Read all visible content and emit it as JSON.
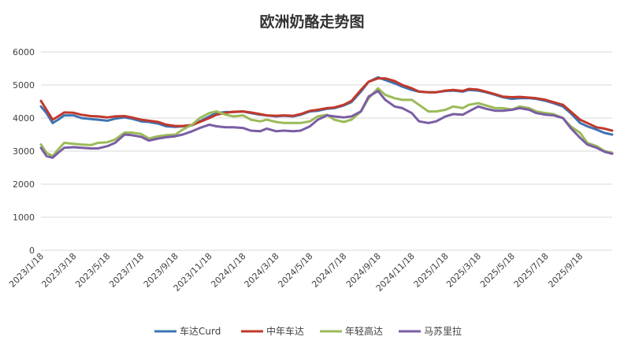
{
  "chart_data": {
    "type": "line",
    "title": "欧洲奶酪走势图",
    "xlabel": "",
    "ylabel": "",
    "ylim": [
      0,
      6000
    ],
    "yticks": [
      0,
      1000,
      2000,
      3000,
      4000,
      5000,
      6000
    ],
    "x_tick_labels": [
      "2023/1/18",
      "2023/3/18",
      "2023/5/18",
      "2023/7/18",
      "2023/9/18",
      "2023/11/18",
      "2024/1/18",
      "2024/3/18",
      "2024/5/18",
      "2024/7/18",
      "2024/9/18",
      "2024/11/18",
      "2025/1/18",
      "2025/3/18",
      "2025/5/18",
      "2025/7/18",
      "2025/9/18"
    ],
    "x_range": [
      "2023/1/18",
      "2025/11/15"
    ],
    "grid": "horizontal",
    "legend_position": "bottom",
    "series": [
      {
        "name": "车达Curd",
        "color": "#3d74b4",
        "points": [
          [
            "2023/1/18",
            4350
          ],
          [
            "2023/1/28",
            4150
          ],
          [
            "2023/2/8",
            3850
          ],
          [
            "2023/2/18",
            3950
          ],
          [
            "2023/3/1",
            4080
          ],
          [
            "2023/3/18",
            4080
          ],
          [
            "2023/4/1",
            4000
          ],
          [
            "2023/4/18",
            3970
          ],
          [
            "2023/5/1",
            3950
          ],
          [
            "2023/5/18",
            3920
          ],
          [
            "2023/6/1",
            3980
          ],
          [
            "2023/6/18",
            4020
          ],
          [
            "2023/7/1",
            3980
          ],
          [
            "2023/7/18",
            3900
          ],
          [
            "2023/8/1",
            3880
          ],
          [
            "2023/8/18",
            3830
          ],
          [
            "2023/9/1",
            3750
          ],
          [
            "2023/9/18",
            3730
          ],
          [
            "2023/10/1",
            3750
          ],
          [
            "2023/10/18",
            3780
          ],
          [
            "2023/11/1",
            3900
          ],
          [
            "2023/11/18",
            4050
          ],
          [
            "2023/12/1",
            4150
          ],
          [
            "2023/12/18",
            4180
          ],
          [
            "2024/1/1",
            4180
          ],
          [
            "2024/1/18",
            4200
          ],
          [
            "2024/2/1",
            4150
          ],
          [
            "2024/2/18",
            4100
          ],
          [
            "2024/3/1",
            4080
          ],
          [
            "2024/3/18",
            4050
          ],
          [
            "2024/4/1",
            4070
          ],
          [
            "2024/4/18",
            4050
          ],
          [
            "2024/5/1",
            4100
          ],
          [
            "2024/5/18",
            4200
          ],
          [
            "2024/6/1",
            4220
          ],
          [
            "2024/6/18",
            4280
          ],
          [
            "2024/7/1",
            4300
          ],
          [
            "2024/7/18",
            4380
          ],
          [
            "2024/8/1",
            4480
          ],
          [
            "2024/8/18",
            4800
          ],
          [
            "2024/9/1",
            5100
          ],
          [
            "2024/9/18",
            5230
          ],
          [
            "2024/10/1",
            5150
          ],
          [
            "2024/10/18",
            5050
          ],
          [
            "2024/11/1",
            4950
          ],
          [
            "2024/11/18",
            4850
          ],
          [
            "2024/12/1",
            4800
          ],
          [
            "2024/12/18",
            4780
          ],
          [
            "2025/1/1",
            4780
          ],
          [
            "2025/1/18",
            4820
          ],
          [
            "2025/2/1",
            4830
          ],
          [
            "2025/2/18",
            4800
          ],
          [
            "2025/3/1",
            4850
          ],
          [
            "2025/3/18",
            4830
          ],
          [
            "2025/4/1",
            4780
          ],
          [
            "2025/4/18",
            4700
          ],
          [
            "2025/5/1",
            4630
          ],
          [
            "2025/5/18",
            4580
          ],
          [
            "2025/6/1",
            4600
          ],
          [
            "2025/6/18",
            4600
          ],
          [
            "2025/7/1",
            4580
          ],
          [
            "2025/7/18",
            4520
          ],
          [
            "2025/8/1",
            4450
          ],
          [
            "2025/8/18",
            4350
          ],
          [
            "2025/9/1",
            4150
          ],
          [
            "2025/9/18",
            3850
          ],
          [
            "2025/10/1",
            3750
          ],
          [
            "2025/10/18",
            3650
          ],
          [
            "2025/11/1",
            3550
          ],
          [
            "2025/11/15",
            3500
          ]
        ]
      },
      {
        "name": "中年车达",
        "color": "#c0392b",
        "points": [
          [
            "2023/1/18",
            4520
          ],
          [
            "2023/1/28",
            4250
          ],
          [
            "2023/2/8",
            3950
          ],
          [
            "2023/2/18",
            4050
          ],
          [
            "2023/3/1",
            4170
          ],
          [
            "2023/3/18",
            4160
          ],
          [
            "2023/4/1",
            4100
          ],
          [
            "2023/4/18",
            4060
          ],
          [
            "2023/5/1",
            4050
          ],
          [
            "2023/5/18",
            4020
          ],
          [
            "2023/6/1",
            4050
          ],
          [
            "2023/6/18",
            4060
          ],
          [
            "2023/7/1",
            4020
          ],
          [
            "2023/7/18",
            3950
          ],
          [
            "2023/8/1",
            3920
          ],
          [
            "2023/8/18",
            3880
          ],
          [
            "2023/9/1",
            3800
          ],
          [
            "2023/9/18",
            3760
          ],
          [
            "2023/10/1",
            3760
          ],
          [
            "2023/10/18",
            3790
          ],
          [
            "2023/11/1",
            3880
          ],
          [
            "2023/11/18",
            4000
          ],
          [
            "2023/12/1",
            4100
          ],
          [
            "2023/12/18",
            4160
          ],
          [
            "2024/1/1",
            4190
          ],
          [
            "2024/1/18",
            4200
          ],
          [
            "2024/2/1",
            4170
          ],
          [
            "2024/2/18",
            4120
          ],
          [
            "2024/3/1",
            4080
          ],
          [
            "2024/3/18",
            4070
          ],
          [
            "2024/4/1",
            4080
          ],
          [
            "2024/4/18",
            4070
          ],
          [
            "2024/5/1",
            4120
          ],
          [
            "2024/5/18",
            4220
          ],
          [
            "2024/6/1",
            4250
          ],
          [
            "2024/6/18",
            4300
          ],
          [
            "2024/7/1",
            4320
          ],
          [
            "2024/7/18",
            4400
          ],
          [
            "2024/8/1",
            4520
          ],
          [
            "2024/8/18",
            4850
          ],
          [
            "2024/9/1",
            5100
          ],
          [
            "2024/9/18",
            5200
          ],
          [
            "2024/10/1",
            5200
          ],
          [
            "2024/10/18",
            5120
          ],
          [
            "2024/11/1",
            5000
          ],
          [
            "2024/11/18",
            4900
          ],
          [
            "2024/12/1",
            4800
          ],
          [
            "2024/12/18",
            4780
          ],
          [
            "2025/1/1",
            4780
          ],
          [
            "2025/1/18",
            4830
          ],
          [
            "2025/2/1",
            4850
          ],
          [
            "2025/2/18",
            4820
          ],
          [
            "2025/3/1",
            4880
          ],
          [
            "2025/3/18",
            4860
          ],
          [
            "2025/4/1",
            4800
          ],
          [
            "2025/4/18",
            4720
          ],
          [
            "2025/5/1",
            4650
          ],
          [
            "2025/5/18",
            4630
          ],
          [
            "2025/6/1",
            4640
          ],
          [
            "2025/6/18",
            4620
          ],
          [
            "2025/7/1",
            4600
          ],
          [
            "2025/7/18",
            4550
          ],
          [
            "2025/8/1",
            4480
          ],
          [
            "2025/8/18",
            4400
          ],
          [
            "2025/9/1",
            4200
          ],
          [
            "2025/9/18",
            3950
          ],
          [
            "2025/10/1",
            3850
          ],
          [
            "2025/10/18",
            3720
          ],
          [
            "2025/11/1",
            3680
          ],
          [
            "2025/11/15",
            3620
          ]
        ]
      },
      {
        "name": "年轻高达",
        "color": "#9bbb59",
        "points": [
          [
            "2023/1/18",
            3200
          ],
          [
            "2023/1/28",
            2950
          ],
          [
            "2023/2/8",
            2850
          ],
          [
            "2023/2/18",
            3050
          ],
          [
            "2023/3/1",
            3250
          ],
          [
            "2023/3/18",
            3220
          ],
          [
            "2023/4/1",
            3200
          ],
          [
            "2023/4/18",
            3180
          ],
          [
            "2023/5/1",
            3250
          ],
          [
            "2023/5/18",
            3270
          ],
          [
            "2023/6/1",
            3350
          ],
          [
            "2023/6/18",
            3560
          ],
          [
            "2023/7/1",
            3560
          ],
          [
            "2023/7/18",
            3520
          ],
          [
            "2023/8/1",
            3380
          ],
          [
            "2023/8/18",
            3450
          ],
          [
            "2023/9/1",
            3480
          ],
          [
            "2023/9/18",
            3500
          ],
          [
            "2023/10/1",
            3650
          ],
          [
            "2023/10/18",
            3800
          ],
          [
            "2023/11/1",
            4000
          ],
          [
            "2023/11/18",
            4150
          ],
          [
            "2023/12/1",
            4200
          ],
          [
            "2023/12/18",
            4100
          ],
          [
            "2024/1/1",
            4050
          ],
          [
            "2024/1/18",
            4080
          ],
          [
            "2024/2/1",
            3950
          ],
          [
            "2024/2/18",
            3900
          ],
          [
            "2024/3/1",
            3950
          ],
          [
            "2024/3/18",
            3880
          ],
          [
            "2024/4/1",
            3850
          ],
          [
            "2024/4/18",
            3850
          ],
          [
            "2024/5/1",
            3850
          ],
          [
            "2024/5/18",
            3900
          ],
          [
            "2024/6/1",
            4050
          ],
          [
            "2024/6/18",
            4100
          ],
          [
            "2024/7/1",
            3950
          ],
          [
            "2024/7/18",
            3880
          ],
          [
            "2024/8/1",
            3950
          ],
          [
            "2024/8/18",
            4200
          ],
          [
            "2024/9/1",
            4600
          ],
          [
            "2024/9/18",
            4900
          ],
          [
            "2024/10/1",
            4700
          ],
          [
            "2024/10/18",
            4600
          ],
          [
            "2024/11/1",
            4550
          ],
          [
            "2024/11/18",
            4550
          ],
          [
            "2024/12/1",
            4400
          ],
          [
            "2024/12/18",
            4200
          ],
          [
            "2025/1/1",
            4200
          ],
          [
            "2025/1/18",
            4250
          ],
          [
            "2025/2/1",
            4350
          ],
          [
            "2025/2/18",
            4300
          ],
          [
            "2025/3/1",
            4400
          ],
          [
            "2025/3/18",
            4450
          ],
          [
            "2025/4/1",
            4380
          ],
          [
            "2025/4/18",
            4300
          ],
          [
            "2025/5/1",
            4300
          ],
          [
            "2025/5/18",
            4260
          ],
          [
            "2025/6/1",
            4350
          ],
          [
            "2025/6/18",
            4300
          ],
          [
            "2025/7/1",
            4200
          ],
          [
            "2025/7/18",
            4150
          ],
          [
            "2025/8/1",
            4120
          ],
          [
            "2025/8/18",
            4000
          ],
          [
            "2025/9/1",
            3750
          ],
          [
            "2025/9/18",
            3550
          ],
          [
            "2025/10/1",
            3250
          ],
          [
            "2025/10/18",
            3150
          ],
          [
            "2025/11/1",
            3000
          ],
          [
            "2025/11/15",
            2950
          ]
        ]
      },
      {
        "name": "马苏里拉",
        "color": "#7a5ea3",
        "points": [
          [
            "2023/1/18",
            3100
          ],
          [
            "2023/1/28",
            2850
          ],
          [
            "2023/2/8",
            2800
          ],
          [
            "2023/2/18",
            2950
          ],
          [
            "2023/3/1",
            3100
          ],
          [
            "2023/3/18",
            3120
          ],
          [
            "2023/4/1",
            3100
          ],
          [
            "2023/4/18",
            3080
          ],
          [
            "2023/5/1",
            3080
          ],
          [
            "2023/5/18",
            3150
          ],
          [
            "2023/6/1",
            3250
          ],
          [
            "2023/6/18",
            3500
          ],
          [
            "2023/7/1",
            3480
          ],
          [
            "2023/7/18",
            3430
          ],
          [
            "2023/8/1",
            3320
          ],
          [
            "2023/8/18",
            3380
          ],
          [
            "2023/9/1",
            3420
          ],
          [
            "2023/9/18",
            3450
          ],
          [
            "2023/10/1",
            3500
          ],
          [
            "2023/10/18",
            3600
          ],
          [
            "2023/11/1",
            3700
          ],
          [
            "2023/11/18",
            3800
          ],
          [
            "2023/12/1",
            3750
          ],
          [
            "2023/12/18",
            3720
          ],
          [
            "2024/1/1",
            3720
          ],
          [
            "2024/1/18",
            3700
          ],
          [
            "2024/2/1",
            3620
          ],
          [
            "2024/2/18",
            3600
          ],
          [
            "2024/3/1",
            3680
          ],
          [
            "2024/3/18",
            3600
          ],
          [
            "2024/4/1",
            3620
          ],
          [
            "2024/4/18",
            3600
          ],
          [
            "2024/5/1",
            3620
          ],
          [
            "2024/5/18",
            3750
          ],
          [
            "2024/6/1",
            3950
          ],
          [
            "2024/6/18",
            4080
          ],
          [
            "2024/7/1",
            4050
          ],
          [
            "2024/7/18",
            4020
          ],
          [
            "2024/8/1",
            4050
          ],
          [
            "2024/8/18",
            4200
          ],
          [
            "2024/9/1",
            4650
          ],
          [
            "2024/9/18",
            4820
          ],
          [
            "2024/10/1",
            4550
          ],
          [
            "2024/10/18",
            4350
          ],
          [
            "2024/11/1",
            4300
          ],
          [
            "2024/11/18",
            4150
          ],
          [
            "2024/12/1",
            3900
          ],
          [
            "2024/12/18",
            3850
          ],
          [
            "2025/1/1",
            3900
          ],
          [
            "2025/1/18",
            4050
          ],
          [
            "2025/2/1",
            4120
          ],
          [
            "2025/2/18",
            4100
          ],
          [
            "2025/3/1",
            4200
          ],
          [
            "2025/3/18",
            4350
          ],
          [
            "2025/4/1",
            4280
          ],
          [
            "2025/4/18",
            4220
          ],
          [
            "2025/5/1",
            4220
          ],
          [
            "2025/5/18",
            4250
          ],
          [
            "2025/6/1",
            4300
          ],
          [
            "2025/6/18",
            4250
          ],
          [
            "2025/7/1",
            4150
          ],
          [
            "2025/7/18",
            4100
          ],
          [
            "2025/8/1",
            4080
          ],
          [
            "2025/8/18",
            4000
          ],
          [
            "2025/9/1",
            3700
          ],
          [
            "2025/9/18",
            3400
          ],
          [
            "2025/10/1",
            3200
          ],
          [
            "2025/10/18",
            3100
          ],
          [
            "2025/11/1",
            2980
          ],
          [
            "2025/11/15",
            2920
          ]
        ]
      }
    ]
  }
}
